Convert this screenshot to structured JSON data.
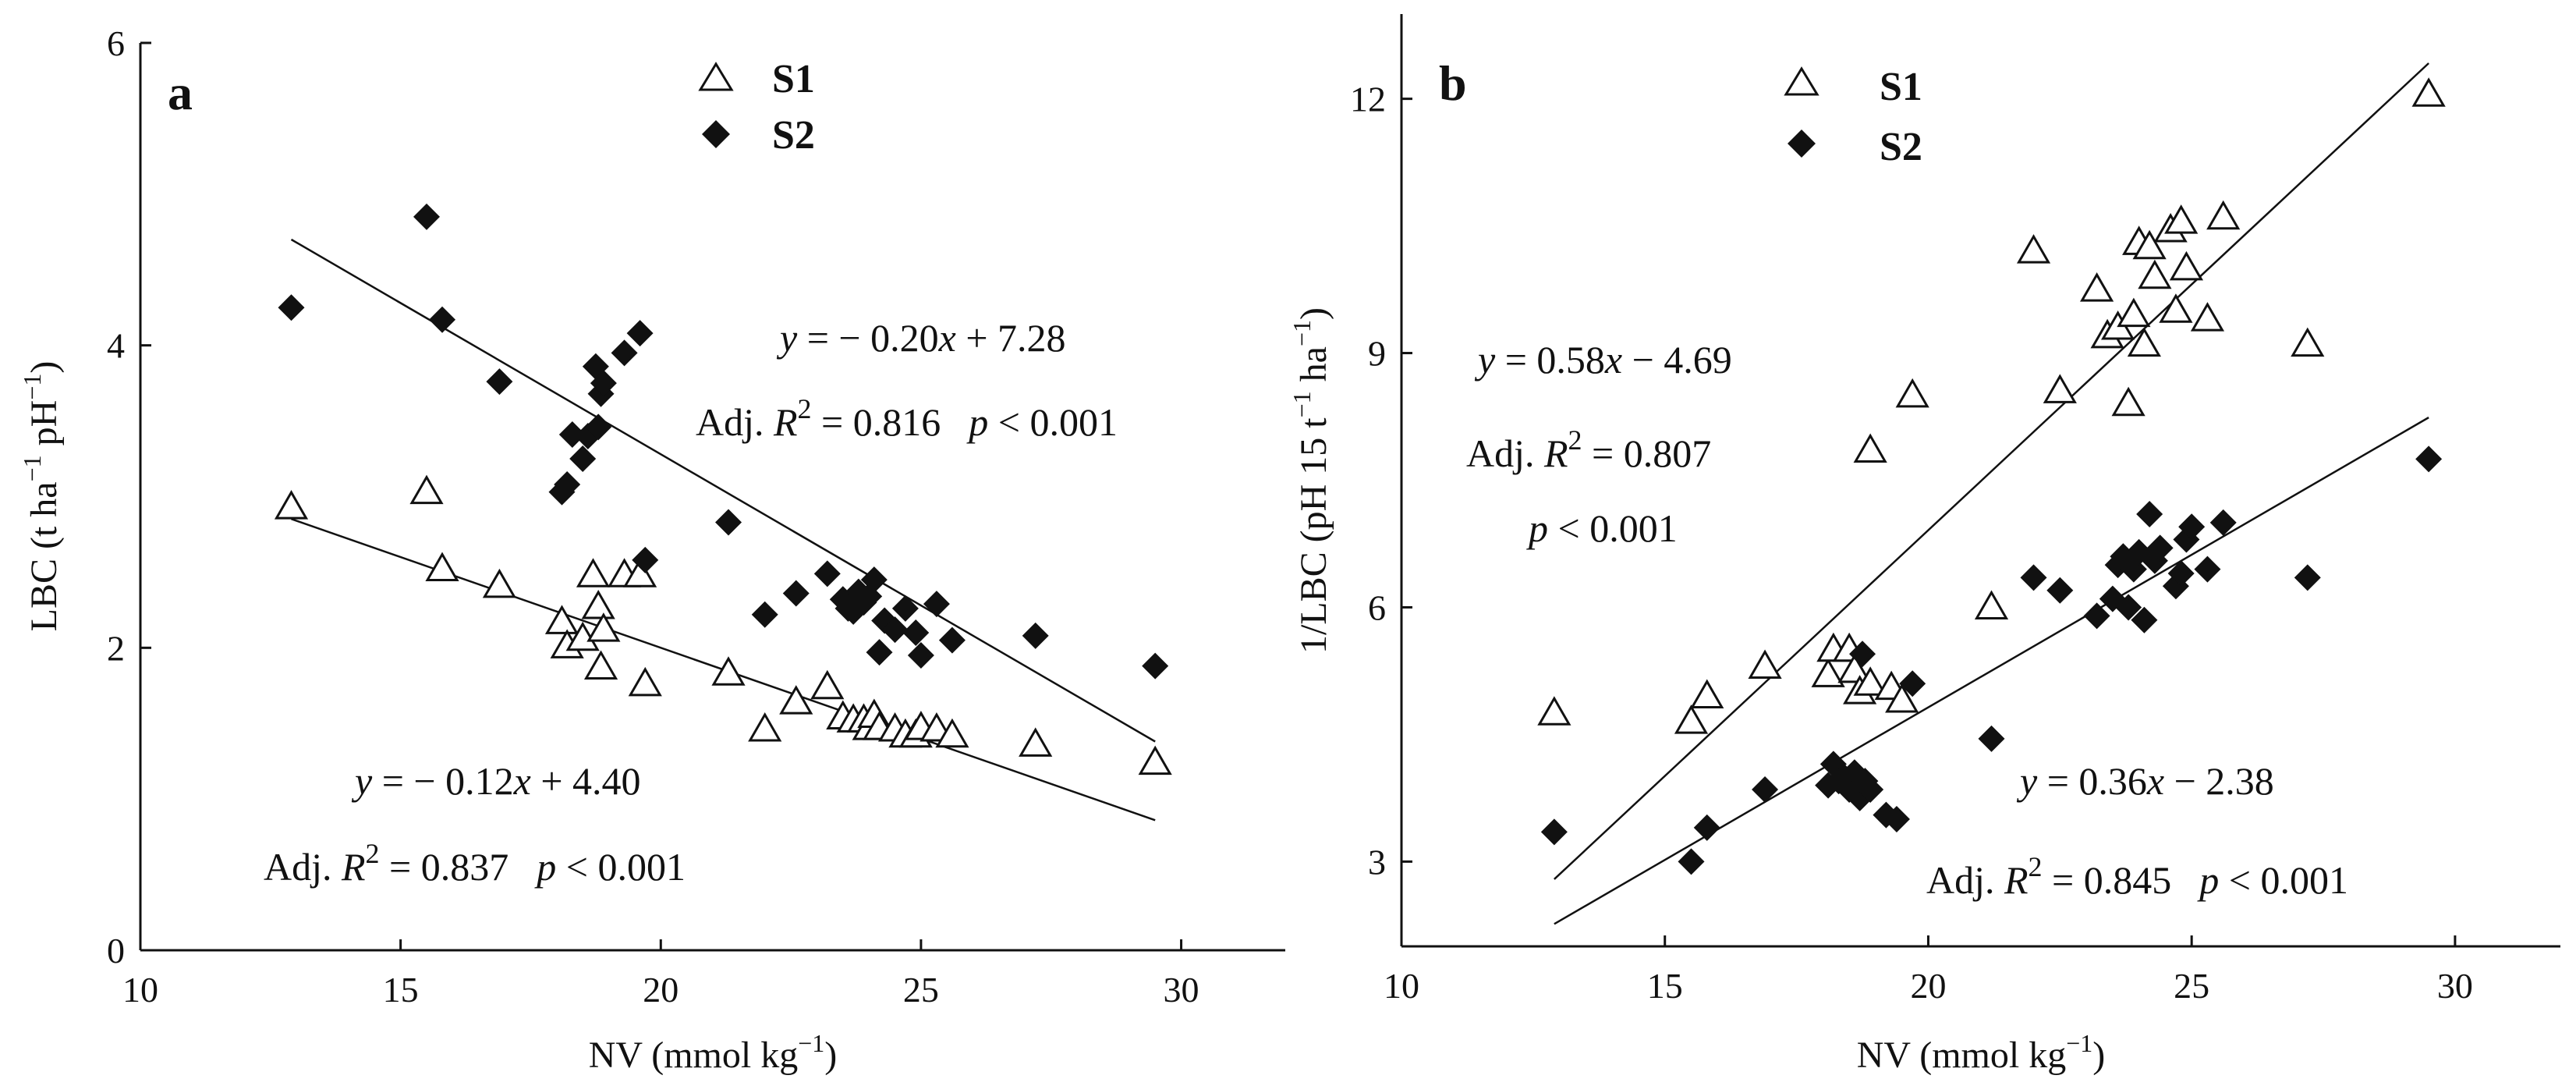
{
  "figure": {
    "panels": [
      {
        "label": "a",
        "legend": {
          "s1": "S1",
          "s2": "S2"
        },
        "eq_s2": {
          "pre": "y",
          "body": " = − 0.20",
          "x": "x",
          "tail": " + 7.28"
        },
        "stat_s2": {
          "pre": "Adj. ",
          "r": "R",
          "sup": "2",
          "val": " = 0.816",
          "p": "p",
          "pval": " < 0.001"
        },
        "eq_s1": {
          "pre": "y",
          "body": " = − 0.12",
          "x": "x",
          "tail": " + 4.40"
        },
        "stat_s1": {
          "pre": "Adj. ",
          "r": "R",
          "sup": "2",
          "val": " = 0.837",
          "p": "p",
          "pval": " < 0.001"
        },
        "ylabel": {
          "a": "LBC (t ha",
          "b": "−1",
          "c": " pH",
          "d": "−1",
          "e": ")"
        },
        "xlabel": {
          "a": "NV (mmol kg",
          "b": "−1",
          "c": ")"
        }
      },
      {
        "label": "b",
        "legend": {
          "s1": "S1",
          "s2": "S2"
        },
        "eq_s1": {
          "pre": "y",
          "body": " = 0.58",
          "x": "x",
          "tail": " − 4.69"
        },
        "stat_s1": {
          "pre": "Adj. ",
          "r": "R",
          "sup": "2",
          "val": " = 0.807"
        },
        "stat_s1_p": {
          "p": "p",
          "pval": " < 0.001"
        },
        "eq_s2": {
          "pre": "y",
          "body": " = 0.36",
          "x": "x",
          "tail": " − 2.38"
        },
        "stat_s2": {
          "pre": "Adj. ",
          "r": "R",
          "sup": "2",
          "val": " = 0.845",
          "p": "p",
          "pval": " < 0.001"
        },
        "ylabel": {
          "a": "1/LBC (pH 15 t",
          "b": "−1",
          "c": " ha",
          "d": "−1",
          "e": ")"
        },
        "xlabel": {
          "a": "NV (mmol kg",
          "b": "−1",
          "c": ")"
        }
      }
    ]
  },
  "chart_data": [
    {
      "type": "scatter",
      "title": "a",
      "xlabel": "NV (mmol kg−1)",
      "ylabel": "LBC (t ha−1 pH−1)",
      "xlim": [
        10,
        32
      ],
      "ylim": [
        0,
        6
      ],
      "xticks": [
        10,
        15,
        20,
        25,
        30
      ],
      "yticks": [
        0,
        2,
        4,
        6
      ],
      "grid": false,
      "legend_position": "top-center",
      "series": [
        {
          "name": "S1",
          "marker": "open-triangle",
          "points": [
            [
              12.9,
              2.93
            ],
            [
              15.5,
              3.03
            ],
            [
              15.8,
              2.52
            ],
            [
              16.9,
              2.41
            ],
            [
              18.1,
              2.17
            ],
            [
              18.2,
              2.01
            ],
            [
              18.5,
              2.06
            ],
            [
              18.7,
              2.48
            ],
            [
              18.8,
              2.27
            ],
            [
              18.85,
              1.87
            ],
            [
              18.9,
              2.12
            ],
            [
              19.3,
              2.48
            ],
            [
              19.6,
              2.48
            ],
            [
              19.7,
              1.76
            ],
            [
              21.3,
              1.83
            ],
            [
              22.0,
              1.46
            ],
            [
              22.6,
              1.64
            ],
            [
              23.2,
              1.74
            ],
            [
              23.5,
              1.54
            ],
            [
              23.7,
              1.52
            ],
            [
              23.9,
              1.52
            ],
            [
              24.0,
              1.47
            ],
            [
              24.1,
              1.55
            ],
            [
              24.2,
              1.47
            ],
            [
              24.5,
              1.46
            ],
            [
              24.7,
              1.42
            ],
            [
              24.9,
              1.42
            ],
            [
              25.0,
              1.47
            ],
            [
              25.3,
              1.46
            ],
            [
              25.6,
              1.42
            ],
            [
              27.2,
              1.36
            ],
            [
              29.5,
              1.24
            ]
          ],
          "fit": {
            "slope": -0.12,
            "intercept": 4.4,
            "x_range": [
              12.9,
              29.5
            ]
          }
        },
        {
          "name": "S2",
          "marker": "filled-diamond",
          "points": [
            [
              12.9,
              4.25
            ],
            [
              15.5,
              4.85
            ],
            [
              15.8,
              4.17
            ],
            [
              16.9,
              3.76
            ],
            [
              18.1,
              3.03
            ],
            [
              18.2,
              3.08
            ],
            [
              18.3,
              3.41
            ],
            [
              18.5,
              3.25
            ],
            [
              18.6,
              3.4
            ],
            [
              18.75,
              3.86
            ],
            [
              18.8,
              3.46
            ],
            [
              18.85,
              3.68
            ],
            [
              18.9,
              3.75
            ],
            [
              19.3,
              3.95
            ],
            [
              19.6,
              4.08
            ],
            [
              19.7,
              2.58
            ],
            [
              21.3,
              2.83
            ],
            [
              22.0,
              2.22
            ],
            [
              22.6,
              2.36
            ],
            [
              23.2,
              2.49
            ],
            [
              23.5,
              2.32
            ],
            [
              23.6,
              2.26
            ],
            [
              23.7,
              2.24
            ],
            [
              23.8,
              2.37
            ],
            [
              23.9,
              2.3
            ],
            [
              24.0,
              2.34
            ],
            [
              24.1,
              2.45
            ],
            [
              24.2,
              1.97
            ],
            [
              24.3,
              2.18
            ],
            [
              24.5,
              2.12
            ],
            [
              24.7,
              2.26
            ],
            [
              24.9,
              2.1
            ],
            [
              25.0,
              1.95
            ],
            [
              25.3,
              2.29
            ],
            [
              25.6,
              2.05
            ],
            [
              27.2,
              2.08
            ],
            [
              29.5,
              1.88
            ]
          ],
          "fit": {
            "slope": -0.2,
            "intercept": 7.28,
            "x_range": [
              12.9,
              29.5
            ]
          }
        }
      ]
    },
    {
      "type": "scatter",
      "title": "b",
      "xlabel": "NV (mmol kg−1)",
      "ylabel": "1/LBC (pH 15 t−1 ha−1)",
      "xlim": [
        10,
        32
      ],
      "ylim": [
        2,
        13
      ],
      "xticks": [
        10,
        15,
        20,
        25,
        30
      ],
      "yticks": [
        3,
        6,
        9,
        12
      ],
      "grid": false,
      "legend_position": "top-left",
      "series": [
        {
          "name": "S1",
          "marker": "open-triangle",
          "points": [
            [
              12.9,
              4.75
            ],
            [
              15.5,
              4.65
            ],
            [
              15.8,
              4.95
            ],
            [
              16.9,
              5.3
            ],
            [
              18.1,
              5.2
            ],
            [
              18.2,
              5.5
            ],
            [
              18.5,
              5.5
            ],
            [
              18.6,
              5.25
            ],
            [
              18.7,
              5.0
            ],
            [
              18.9,
              5.1
            ],
            [
              19.3,
              5.05
            ],
            [
              19.5,
              4.9
            ],
            [
              18.9,
              7.85
            ],
            [
              19.7,
              8.5
            ],
            [
              21.2,
              6.0
            ],
            [
              22.0,
              10.2
            ],
            [
              22.5,
              8.55
            ],
            [
              23.2,
              9.75
            ],
            [
              23.4,
              9.2
            ],
            [
              23.6,
              9.3
            ],
            [
              23.8,
              8.4
            ],
            [
              23.9,
              9.45
            ],
            [
              24.0,
              10.3
            ],
            [
              24.1,
              9.1
            ],
            [
              24.2,
              10.25
            ],
            [
              24.3,
              9.9
            ],
            [
              24.6,
              10.45
            ],
            [
              24.7,
              9.5
            ],
            [
              24.8,
              10.55
            ],
            [
              24.9,
              10.0
            ],
            [
              25.3,
              9.4
            ],
            [
              25.6,
              10.6
            ],
            [
              27.2,
              9.1
            ],
            [
              29.5,
              12.05
            ]
          ],
          "fit": {
            "slope": 0.58,
            "intercept": -4.69,
            "x_range": [
              12.9,
              29.5
            ]
          }
        },
        {
          "name": "S2",
          "marker": "filled-diamond",
          "points": [
            [
              12.9,
              3.35
            ],
            [
              15.5,
              3.0
            ],
            [
              15.8,
              3.4
            ],
            [
              16.9,
              3.85
            ],
            [
              18.1,
              3.9
            ],
            [
              18.2,
              4.15
            ],
            [
              18.3,
              3.95
            ],
            [
              18.4,
              4.0
            ],
            [
              18.5,
              3.85
            ],
            [
              18.6,
              4.05
            ],
            [
              18.7,
              3.75
            ],
            [
              18.75,
              5.45
            ],
            [
              18.8,
              3.95
            ],
            [
              18.9,
              3.85
            ],
            [
              19.2,
              3.55
            ],
            [
              19.4,
              3.5
            ],
            [
              19.7,
              5.1
            ],
            [
              21.2,
              4.45
            ],
            [
              22.0,
              6.35
            ],
            [
              22.5,
              6.2
            ],
            [
              23.2,
              5.9
            ],
            [
              23.5,
              6.1
            ],
            [
              23.6,
              6.5
            ],
            [
              23.7,
              6.6
            ],
            [
              23.8,
              6.0
            ],
            [
              23.9,
              6.45
            ],
            [
              24.0,
              6.65
            ],
            [
              24.1,
              5.85
            ],
            [
              24.2,
              7.1
            ],
            [
              24.3,
              6.55
            ],
            [
              24.4,
              6.7
            ],
            [
              24.7,
              6.25
            ],
            [
              24.8,
              6.4
            ],
            [
              24.9,
              6.8
            ],
            [
              25.0,
              6.95
            ],
            [
              25.3,
              6.45
            ],
            [
              25.6,
              7.0
            ],
            [
              27.2,
              6.35
            ],
            [
              29.5,
              7.75
            ]
          ],
          "fit": {
            "slope": 0.36,
            "intercept": -2.38,
            "x_range": [
              12.9,
              29.5
            ]
          }
        }
      ]
    }
  ]
}
